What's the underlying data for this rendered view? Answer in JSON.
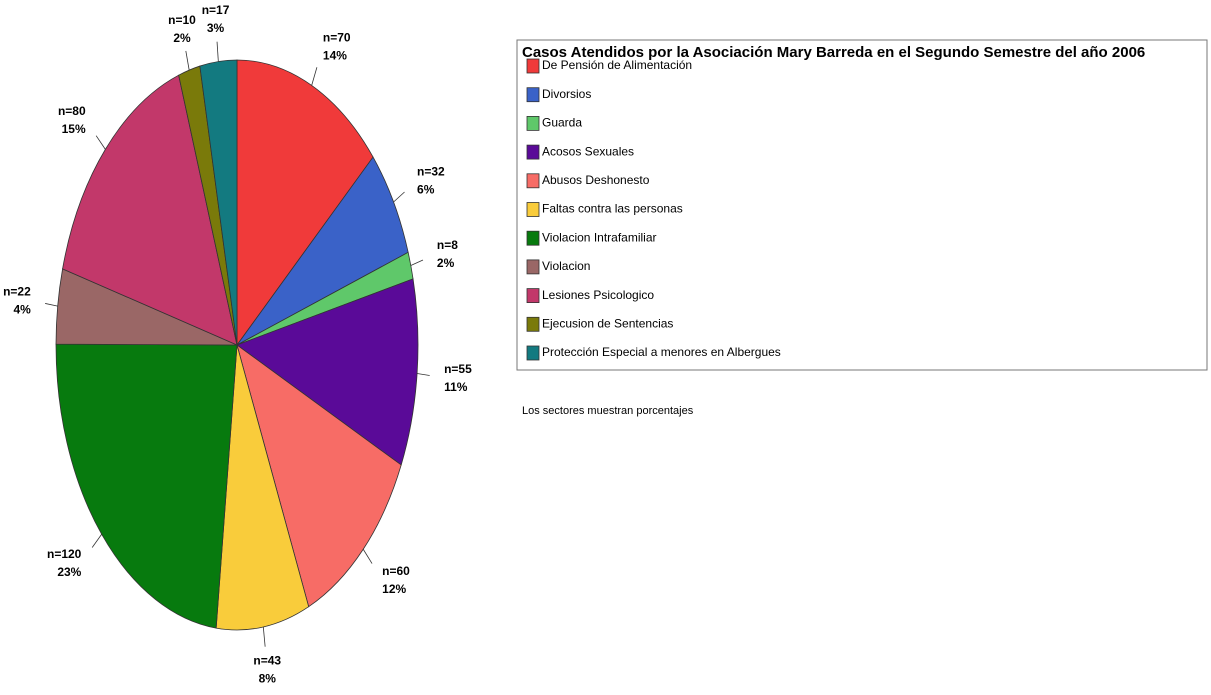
{
  "chart_data": {
    "type": "pie",
    "title": "Casos Atendidos por la Asociación Mary Barreda en el Segundo Semestre del año 2006",
    "note": "Los sectores muestran porcentajes",
    "categories": [
      "De Pensión de Alimentación",
      "Divorsios",
      "Guarda",
      "Acosos Sexuales",
      "Abusos Deshonesto",
      "Faltas contra las personas",
      "Violacion Intrafamiliar",
      "Violacion",
      "Lesiones Psicologico",
      "Ejecusion de Sentencias",
      "Protección Especial a menores en Albergues"
    ],
    "values": [
      70,
      32,
      8,
      55,
      60,
      43,
      120,
      22,
      80,
      10,
      17
    ],
    "value_labels": [
      "n=70",
      "n=32",
      "n=8",
      "n=55",
      "n=60",
      "n=43",
      "n=120",
      "n=22",
      "n=80",
      "n=10",
      "n=17"
    ],
    "percent_labels": [
      "14%",
      "6%",
      "2%",
      "11%",
      "12%",
      "8%",
      "23%",
      "4%",
      "15%",
      "2%",
      "3%"
    ],
    "colors": [
      "#f03a3a",
      "#3a62c8",
      "#5fc86a",
      "#5a0a98",
      "#f76c66",
      "#f9cc3b",
      "#077a0e",
      "#9a6766",
      "#c2386a",
      "#7a7a0a",
      "#137a80"
    ]
  }
}
